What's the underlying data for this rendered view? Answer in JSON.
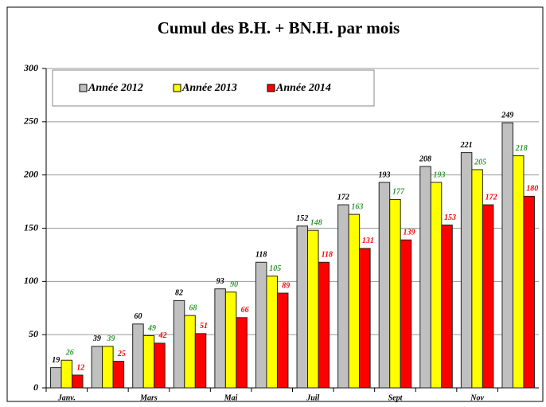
{
  "chart_data": {
    "type": "bar",
    "title": "Cumul des B.H. + BN.H. par mois",
    "categories": [
      "Janv.",
      null,
      "Mars",
      null,
      "Mai",
      null,
      "Juil",
      null,
      "Sept",
      null,
      "Nov",
      null
    ],
    "series": [
      {
        "name": "Année 2012",
        "color": "#c0c0c0",
        "label_color": "#000000",
        "values": [
          19,
          39,
          60,
          82,
          93,
          118,
          152,
          172,
          193,
          208,
          221,
          249
        ]
      },
      {
        "name": "Année 2013",
        "color": "#ffff00",
        "label_color": "#339933",
        "values": [
          26,
          39,
          49,
          68,
          90,
          105,
          148,
          163,
          177,
          193,
          205,
          218
        ]
      },
      {
        "name": "Année 2014",
        "color": "#ff0000",
        "label_color": "#ff0000",
        "values": [
          12,
          25,
          42,
          51,
          66,
          89,
          118,
          131,
          139,
          153,
          172,
          180
        ]
      }
    ],
    "ylim": [
      0,
      300
    ],
    "yticks": [
      0,
      50,
      100,
      150,
      200,
      250,
      300
    ],
    "grid": true,
    "legend": "top-left"
  }
}
